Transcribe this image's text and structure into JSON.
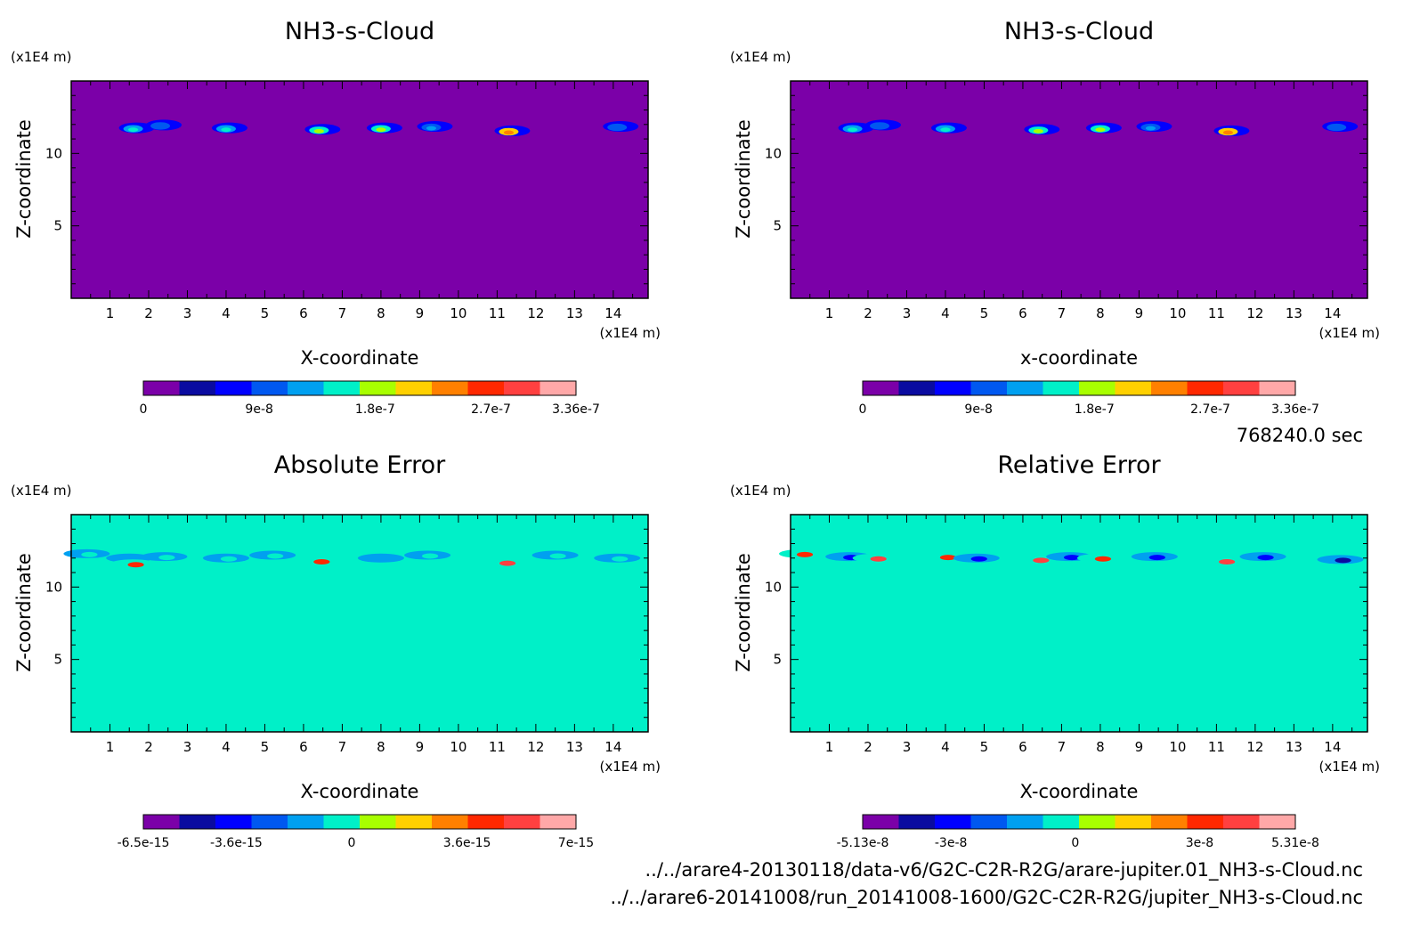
{
  "palette": {
    "cloud": [
      "#7b00a8",
      "#0a0ba0",
      "#0000ff",
      "#0058f0",
      "#00a0f0",
      "#00f0c8",
      "#a8ff00",
      "#ffd000",
      "#ff8000",
      "#ff2800",
      "#ff4040",
      "#ffa8a8"
    ],
    "error": [
      "#7b00a8",
      "#0a0ba0",
      "#0000ff",
      "#0058f0",
      "#00a0f0",
      "#00f0c8",
      "#a8ff00",
      "#ffd000",
      "#ff8000",
      "#ff2800",
      "#ff4040",
      "#ffa8a8"
    ]
  },
  "timestamp": "768240.0 sec",
  "files": [
    "../../arare4-20130118/data-v6/G2C-C2R-R2G/arare-jupiter.01_NH3-s-Cloud.nc",
    "../../arare6-20141008/run_20141008-1600/G2C-C2R-R2G/jupiter_NH3-s-Cloud.nc"
  ],
  "chart_data": [
    {
      "type": "heatmap",
      "title": "NH3-s-Cloud",
      "xlabel": "X-coordinate",
      "ylabel": "Z-coordinate",
      "xunit": "(x1E4 m)",
      "yunit": "(x1E4 m)",
      "xlim": [
        0,
        14.9
      ],
      "ylim": [
        0,
        15
      ],
      "xticks": [
        "1",
        "2",
        "3",
        "4",
        "5",
        "6",
        "7",
        "8",
        "9",
        "10",
        "11",
        "12",
        "13",
        "14"
      ],
      "yticks": [
        "5",
        "10"
      ],
      "background_value": 0,
      "colorbar": {
        "min": 0,
        "max": 3.36e-07,
        "labels": [
          "0",
          "9e-8",
          "1.8e-7",
          "2.7e-7",
          "3.36e-7"
        ]
      },
      "features": [
        {
          "x": 1.6,
          "z": 11.7,
          "level": 5
        },
        {
          "x": 2.3,
          "z": 11.9,
          "level": 3
        },
        {
          "x": 4.0,
          "z": 11.7,
          "level": 5
        },
        {
          "x": 6.4,
          "z": 11.6,
          "level": 6
        },
        {
          "x": 8.0,
          "z": 11.7,
          "level": 6
        },
        {
          "x": 9.3,
          "z": 11.8,
          "level": 4
        },
        {
          "x": 11.3,
          "z": 11.5,
          "level": 8
        },
        {
          "x": 14.1,
          "z": 11.8,
          "level": 3
        }
      ]
    },
    {
      "type": "heatmap",
      "title": "NH3-s-Cloud",
      "xlabel": "x-coordinate",
      "ylabel": "Z-coordinate",
      "xunit": "(x1E4 m)",
      "yunit": "(x1E4 m)",
      "xlim": [
        0,
        14.9
      ],
      "ylim": [
        0,
        15
      ],
      "xticks": [
        "1",
        "2",
        "3",
        "4",
        "5",
        "6",
        "7",
        "8",
        "9",
        "10",
        "11",
        "12",
        "13",
        "14"
      ],
      "yticks": [
        "5",
        "10"
      ],
      "background_value": 0,
      "colorbar": {
        "min": 0,
        "max": 3.36e-07,
        "labels": [
          "0",
          "9e-8",
          "1.8e-7",
          "2.7e-7",
          "3.36e-7"
        ]
      },
      "features": [
        {
          "x": 1.6,
          "z": 11.7,
          "level": 5
        },
        {
          "x": 2.3,
          "z": 11.9,
          "level": 3
        },
        {
          "x": 4.0,
          "z": 11.7,
          "level": 5
        },
        {
          "x": 6.4,
          "z": 11.6,
          "level": 6
        },
        {
          "x": 8.0,
          "z": 11.7,
          "level": 6
        },
        {
          "x": 9.3,
          "z": 11.8,
          "level": 4
        },
        {
          "x": 11.3,
          "z": 11.5,
          "level": 8
        },
        {
          "x": 14.1,
          "z": 11.8,
          "level": 3
        }
      ]
    },
    {
      "type": "heatmap",
      "title": "Absolute Error",
      "xlabel": "X-coordinate",
      "ylabel": "Z-coordinate",
      "xunit": "(x1E4 m)",
      "yunit": "(x1E4 m)",
      "xlim": [
        0,
        14.9
      ],
      "ylim": [
        0,
        15
      ],
      "xticks": [
        "1",
        "2",
        "3",
        "4",
        "5",
        "6",
        "7",
        "8",
        "9",
        "10",
        "11",
        "12",
        "13",
        "14"
      ],
      "yticks": [
        "5",
        "10"
      ],
      "background_value": 0,
      "colorbar": {
        "min": -6.5e-15,
        "max": 7e-15,
        "labels": [
          "-6.5e-15",
          "-3.6e-15",
          "0",
          "3.6e-15",
          "7e-15"
        ]
      },
      "features": [
        {
          "x": 0.4,
          "z": 12.3,
          "level": 5
        },
        {
          "x": 1.5,
          "z": 12.0,
          "level": 4
        },
        {
          "x": 1.6,
          "z": 11.6,
          "level": 9
        },
        {
          "x": 2.4,
          "z": 12.1,
          "level": 5
        },
        {
          "x": 4.0,
          "z": 12.0,
          "level": 5
        },
        {
          "x": 5.2,
          "z": 12.2,
          "level": 5
        },
        {
          "x": 6.4,
          "z": 11.8,
          "level": 9
        },
        {
          "x": 8.0,
          "z": 12.0,
          "level": 4
        },
        {
          "x": 9.2,
          "z": 12.2,
          "level": 5
        },
        {
          "x": 11.2,
          "z": 11.7,
          "level": 10
        },
        {
          "x": 12.5,
          "z": 12.2,
          "level": 5
        },
        {
          "x": 14.1,
          "z": 12.0,
          "level": 5
        }
      ]
    },
    {
      "type": "heatmap",
      "title": "Relative Error",
      "xlabel": "X-coordinate",
      "ylabel": "Z-coordinate",
      "xunit": "(x1E4 m)",
      "yunit": "(x1E4 m)",
      "xlim": [
        0,
        14.9
      ],
      "ylim": [
        0,
        15
      ],
      "xticks": [
        "1",
        "2",
        "3",
        "4",
        "5",
        "6",
        "7",
        "8",
        "9",
        "10",
        "11",
        "12",
        "13",
        "14"
      ],
      "yticks": [
        "5",
        "10"
      ],
      "background_value": 0,
      "colorbar": {
        "min": -5.13e-08,
        "max": 5.31e-08,
        "labels": [
          "-5.13e-8",
          "-3e-8",
          "0",
          "3e-8",
          "5.31e-8"
        ]
      },
      "features": [
        {
          "x": 0.3,
          "z": 12.3,
          "level": 9
        },
        {
          "x": 1.5,
          "z": 12.1,
          "level": 2
        },
        {
          "x": 2.2,
          "z": 12.0,
          "level": 10
        },
        {
          "x": 4.0,
          "z": 12.1,
          "level": 9
        },
        {
          "x": 4.8,
          "z": 12.0,
          "level": 2
        },
        {
          "x": 6.4,
          "z": 11.9,
          "level": 10
        },
        {
          "x": 7.2,
          "z": 12.1,
          "level": 2
        },
        {
          "x": 8.0,
          "z": 12.0,
          "level": 9
        },
        {
          "x": 9.4,
          "z": 12.1,
          "level": 2
        },
        {
          "x": 11.2,
          "z": 11.8,
          "level": 10
        },
        {
          "x": 12.2,
          "z": 12.1,
          "level": 2
        },
        {
          "x": 14.2,
          "z": 11.9,
          "level": 1
        }
      ]
    }
  ]
}
